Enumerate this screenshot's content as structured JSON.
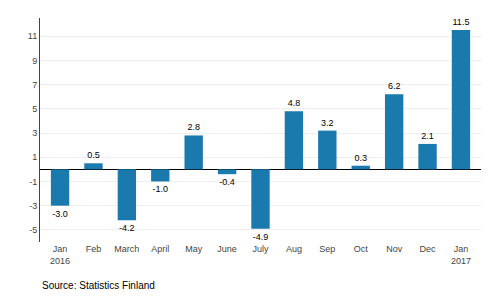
{
  "chart_data": {
    "type": "bar",
    "categories": [
      "Jan\n2016",
      "Feb",
      "March",
      "April",
      "May",
      "June",
      "July",
      "Aug",
      "Sep",
      "Oct",
      "Nov",
      "Dec",
      "Jan\n2017"
    ],
    "values": [
      -3.0,
      0.5,
      -4.2,
      -1.0,
      2.8,
      -0.4,
      -4.9,
      4.8,
      3.2,
      0.3,
      6.2,
      2.1,
      11.5
    ],
    "value_labels": [
      "-3.0",
      "0.5",
      "-4.2",
      "-1.0",
      "2.8",
      "-0.4",
      "-4.9",
      "4.8",
      "3.2",
      "0.3",
      "6.2",
      "2.1",
      "11.5"
    ],
    "data_labels": true,
    "color": "#1a7aad",
    "ylim": [
      -6,
      12.5
    ],
    "yticks": [
      -5,
      -3,
      -1,
      1,
      3,
      5,
      7,
      9,
      11
    ],
    "grid": true,
    "annotations": [
      "Source: Statistics Finland"
    ]
  }
}
